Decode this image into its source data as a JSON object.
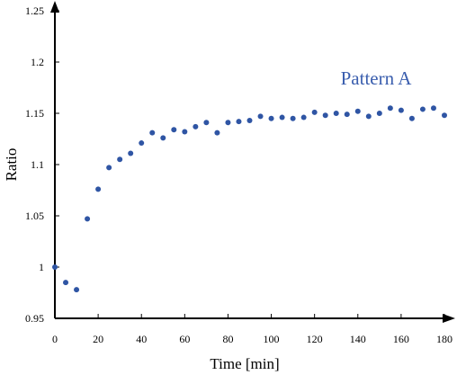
{
  "chart_data": {
    "type": "scatter",
    "xlabel": "Time [min]",
    "ylabel": "Ratio",
    "xlim": [
      0,
      180
    ],
    "ylim": [
      0.95,
      1.25
    ],
    "x_ticks": [
      "0",
      "20",
      "40",
      "60",
      "80",
      "100",
      "120",
      "140",
      "160",
      "180"
    ],
    "y_ticks": [
      "0.95",
      "1",
      "1.05",
      "1.1",
      "1.15",
      "1.2",
      "1.25"
    ],
    "grid": false,
    "annotation": "Pattern A",
    "marker_color": "#2F55A4",
    "annotation_color": "#3A5EAE",
    "series": [
      {
        "x": [
          0,
          5,
          10,
          15,
          20,
          25,
          30,
          35,
          40,
          45,
          50,
          55,
          60,
          65,
          70,
          75,
          80,
          85,
          90,
          95,
          100,
          105,
          110,
          115,
          120,
          125,
          130,
          135,
          140,
          145,
          150,
          155,
          160,
          165,
          170,
          175,
          180
        ],
        "y": [
          1.0,
          0.985,
          0.978,
          1.047,
          1.076,
          1.097,
          1.105,
          1.111,
          1.121,
          1.131,
          1.126,
          1.134,
          1.132,
          1.137,
          1.141,
          1.131,
          1.141,
          1.142,
          1.143,
          1.147,
          1.145,
          1.146,
          1.145,
          1.146,
          1.151,
          1.148,
          1.15,
          1.149,
          1.152,
          1.147,
          1.15,
          1.155,
          1.153,
          1.145,
          1.154,
          1.155,
          1.148
        ]
      }
    ]
  }
}
